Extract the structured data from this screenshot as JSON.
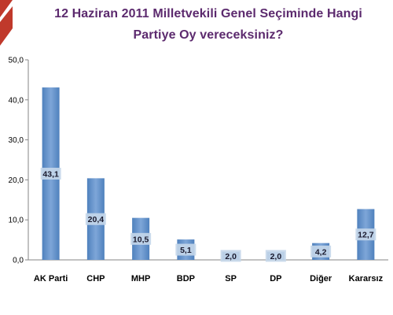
{
  "chart_data": {
    "type": "bar",
    "title_lines": [
      "12 Haziran 2011 Milletvekili Genel Seçiminde Hangi",
      "Partiye Oy vereceksiniz?"
    ],
    "categories": [
      "AK Parti",
      "CHP",
      "MHP",
      "BDP",
      "SP",
      "DP",
      "Diğer",
      "Kararsız"
    ],
    "values": [
      43.1,
      20.4,
      10.5,
      5.1,
      2.0,
      2.0,
      4.2,
      12.7
    ],
    "value_labels": [
      "43,1",
      "20,4",
      "10,5",
      "5,1",
      "2,0",
      "2,0",
      "4,2",
      "12,7"
    ],
    "ylim": [
      0,
      50
    ],
    "yticks": [
      0,
      10,
      20,
      30,
      40,
      50
    ],
    "ytick_labels": [
      "0,0",
      "10,0",
      "20,0",
      "30,0",
      "40,0",
      "50,0"
    ],
    "grid": false,
    "legend": "none",
    "colors": {
      "bar": "#4f81bd",
      "bar_top": "#7ea6d8",
      "label_box": "#c5d7ea",
      "title": "#5c2a6e",
      "decor": "#c0392b"
    }
  }
}
